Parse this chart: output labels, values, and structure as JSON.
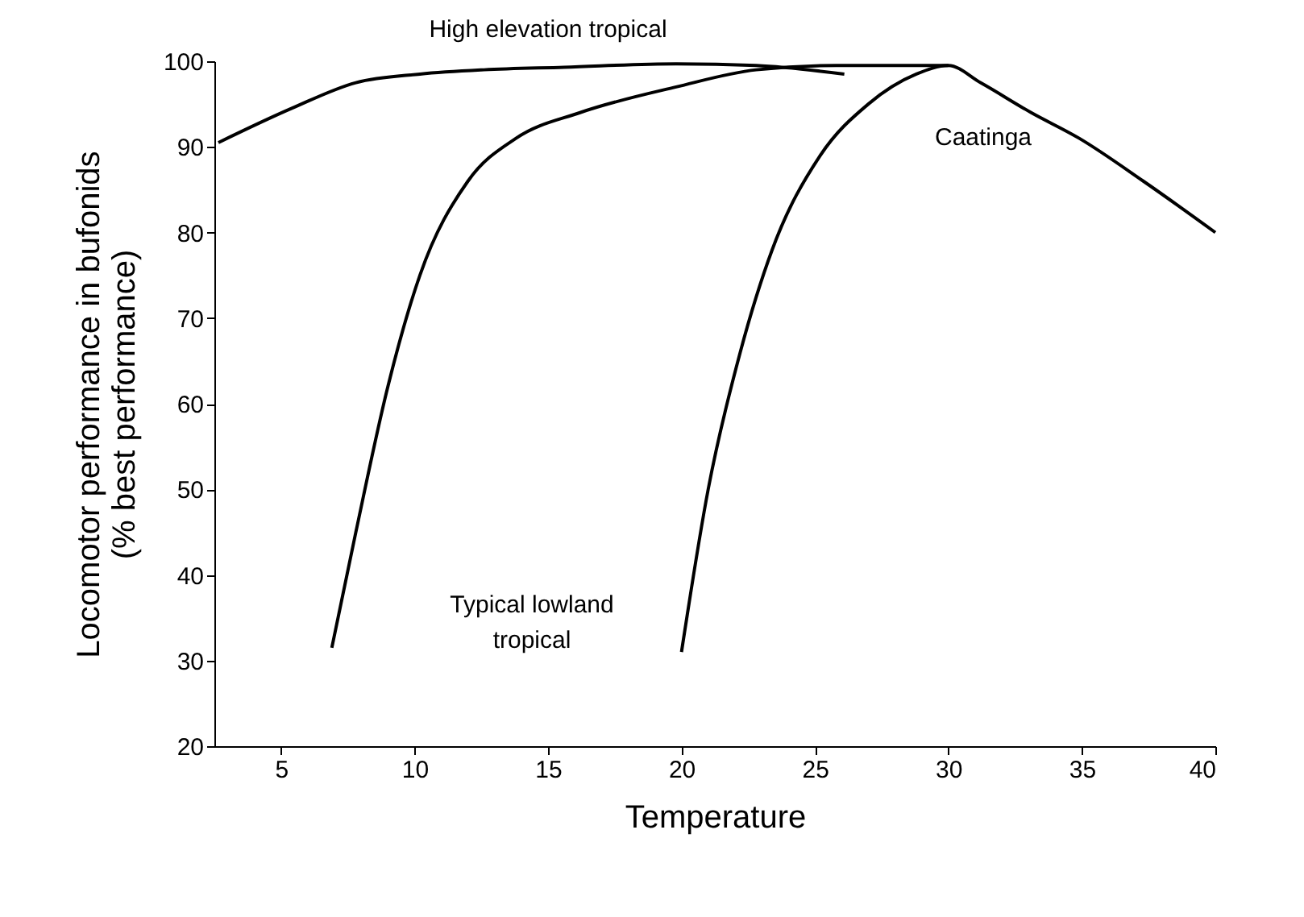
{
  "chart_data": {
    "type": "line",
    "xlabel": "Temperature",
    "ylabel": "Locomotor performance in bufonids\n(% best performance)",
    "xlim": [
      2.5,
      40
    ],
    "xticks": [
      5,
      10,
      15,
      20,
      25,
      30,
      35,
      40
    ],
    "ylim": [
      20,
      100
    ],
    "yticks": [
      20,
      30,
      40,
      50,
      60,
      70,
      80,
      90,
      100
    ],
    "grid": false,
    "marker": "none",
    "line_style": "solid",
    "series": [
      {
        "color": "#000000",
        "x": [
          2.65,
          5.4,
          7.8,
          10.2,
          12.6,
          15.6,
          19.8,
          22.8,
          26.1
        ],
        "values": [
          90.5,
          94.5,
          97.5,
          98.5,
          99,
          99.3,
          99.7,
          99.5,
          98.5
        ]
      },
      {
        "color": "#000000",
        "x": [
          6.9,
          7.8,
          9,
          10.2,
          12,
          13.8,
          16.2,
          19.8,
          22.8,
          25.8,
          30
        ],
        "values": [
          31.5,
          45,
          62,
          75,
          86,
          91,
          94,
          97,
          99,
          99.5,
          99.5
        ]
      },
      {
        "color": "#000000",
        "x": [
          20,
          21,
          22.2,
          23.4,
          25.2,
          27,
          28.8,
          30,
          31.2,
          33.1,
          34.9,
          37.3,
          40
        ],
        "values": [
          31,
          50,
          66,
          78,
          89,
          95,
          98.5,
          99.5,
          97.5,
          94,
          91,
          86,
          80
        ]
      }
    ],
    "annotations": [
      "High elevation tropical",
      "Caatinga",
      "Typical lowland\ntropical"
    ]
  }
}
